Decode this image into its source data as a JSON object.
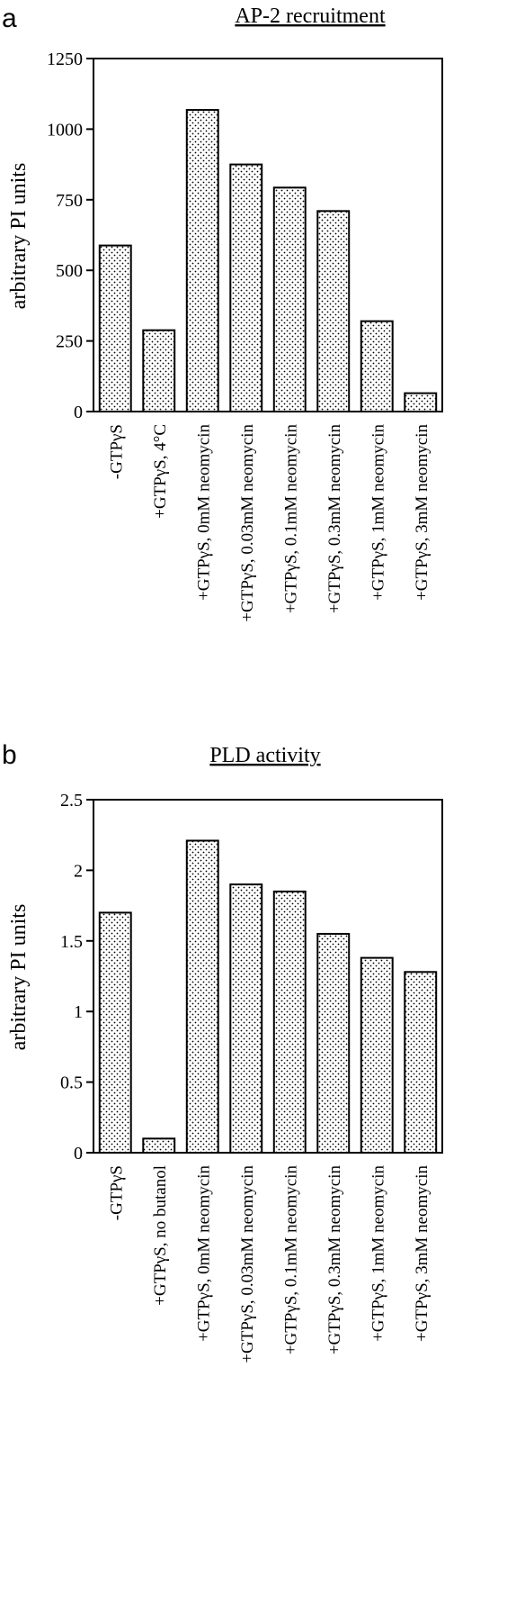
{
  "chart_data": [
    {
      "type": "bar",
      "panel": "a",
      "title": "AP-2 recruitment",
      "xlabel": "",
      "ylabel": "arbitrary PI units",
      "ylim": [
        0,
        1250
      ],
      "yticks": [
        0,
        250,
        500,
        750,
        1000,
        1250
      ],
      "ytick_labels": [
        "0",
        "250",
        "500",
        "750",
        "1000",
        "1250"
      ],
      "categories": [
        "-GTPγS",
        "+GTPγS, 4°C",
        "+GTPγS, 0mM neomycin",
        "+GTPγS, 0.03mM neomycin",
        "+GTPγS, 0.1mM neomycin",
        "+GTPγS, 0.3mM neomycin",
        "+GTPγS, 1mM neomycin",
        "+GTPγS, 3mM neomycin"
      ],
      "values": [
        588,
        288,
        1068,
        875,
        793,
        710,
        320,
        65
      ],
      "grid": false,
      "bar_pattern": "dotted"
    },
    {
      "type": "bar",
      "panel": "b",
      "title": "PLD activity",
      "xlabel": "",
      "ylabel": "arbitrary PI units",
      "ylim": [
        0,
        2.5
      ],
      "yticks": [
        0,
        0.5,
        1,
        1.5,
        2,
        2.5
      ],
      "ytick_labels": [
        "0",
        "0.5",
        "1",
        "1.5",
        "2",
        "2.5"
      ],
      "categories": [
        "-GTPγS",
        "+GTPγS, no butanol",
        "+GTPγS, 0mM neomycin",
        "+GTPγS, 0.03mM neomycin",
        "+GTPγS, 0.1mM neomycin",
        "+GTPγS, 0.3mM neomycin",
        "+GTPγS, 1mM neomycin",
        "+GTPγS, 3mM neomycin"
      ],
      "values": [
        1.7,
        0.1,
        2.21,
        1.9,
        1.85,
        1.55,
        1.38,
        1.28
      ],
      "grid": false,
      "bar_pattern": "dotted"
    }
  ]
}
